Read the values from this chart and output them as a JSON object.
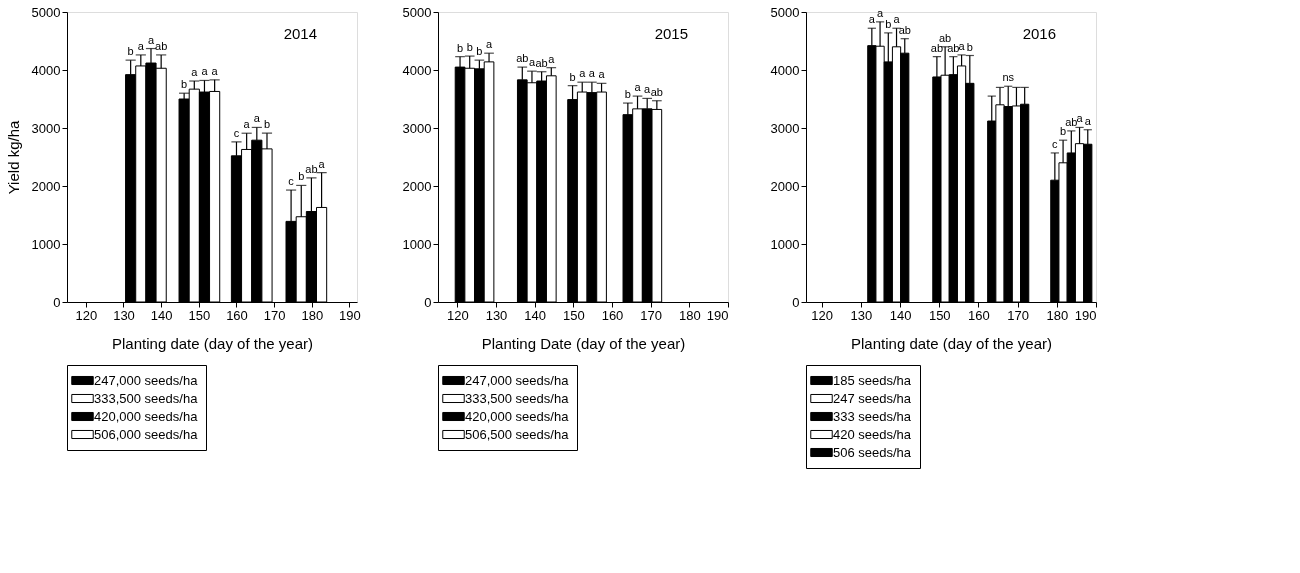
{
  "chart_data": [
    {
      "type": "bar",
      "title": "2014",
      "ylabel": "Yield kg/ha",
      "xlabel": "Planting date (day of the year)",
      "xlim": [
        115,
        192
      ],
      "xticks": [
        120,
        130,
        140,
        150,
        160,
        170,
        180,
        190
      ],
      "ylim": [
        0,
        5000
      ],
      "yticks": [
        0,
        1000,
        2000,
        3000,
        4000,
        5000
      ],
      "grid": false,
      "legend": "bottom",
      "series": [
        {
          "name": "247,000 seeds/ha",
          "color": "#000000",
          "x": [
            131.9,
            146.1,
            160.0,
            174.5
          ],
          "values": [
            3920,
            3500,
            2520,
            1390
          ],
          "errors": [
            250,
            100,
            240,
            540
          ]
        },
        {
          "name": "333,500 seeds/ha",
          "color": "#ffffff",
          "x": [
            134.6,
            148.8,
            162.7,
            177.2
          ],
          "values": [
            4070,
            3670,
            2630,
            1470
          ],
          "errors": [
            190,
            140,
            280,
            540
          ]
        },
        {
          "name": "420,000 seeds/ha",
          "color": "#000000",
          "x": [
            137.3,
            151.5,
            165.4,
            179.9
          ],
          "values": [
            4120,
            3620,
            2790,
            1560
          ],
          "errors": [
            250,
            200,
            220,
            580
          ]
        },
        {
          "name": "506,000 seeds/ha",
          "color": "#ffffff",
          "x": [
            140.0,
            154.2,
            168.1,
            182.6
          ],
          "values": [
            4030,
            3630,
            2640,
            1630
          ],
          "errors": [
            230,
            200,
            270,
            600
          ]
        }
      ],
      "annotations": [
        {
          "text": "b",
          "x": 131.9,
          "y": 4170
        },
        {
          "text": "a",
          "x": 134.6,
          "y": 4260
        },
        {
          "text": "a",
          "x": 137.3,
          "y": 4370
        },
        {
          "text": "ab",
          "x": 140.0,
          "y": 4260
        },
        {
          "text": "b",
          "x": 146.1,
          "y": 3600
        },
        {
          "text": "a",
          "x": 148.8,
          "y": 3810
        },
        {
          "text": "a",
          "x": 151.5,
          "y": 3820
        },
        {
          "text": "a",
          "x": 154.2,
          "y": 3830
        },
        {
          "text": "c",
          "x": 160.0,
          "y": 2760
        },
        {
          "text": "a",
          "x": 162.7,
          "y": 2910
        },
        {
          "text": "a",
          "x": 165.4,
          "y": 3010
        },
        {
          "text": "b",
          "x": 168.1,
          "y": 2910
        },
        {
          "text": "c",
          "x": 174.5,
          "y": 1930
        },
        {
          "text": "b",
          "x": 177.2,
          "y": 2010
        },
        {
          "text": "ab",
          "x": 179.9,
          "y": 2140
        },
        {
          "text": "a",
          "x": 182.6,
          "y": 2230
        }
      ]
    },
    {
      "type": "bar",
      "title": "2015",
      "xlabel": "Planting Date (day of the year)",
      "xlim": [
        115,
        190
      ],
      "xticks": [
        120,
        130,
        140,
        150,
        160,
        170,
        180,
        190
      ],
      "ylim": [
        0,
        5000
      ],
      "yticks": [
        0,
        1000,
        2000,
        3000,
        4000,
        5000
      ],
      "grid": false,
      "legend": "bottom",
      "series": [
        {
          "name": "247,000 seeds/ha",
          "color": "#000000",
          "x": [
            120.7,
            136.8,
            149.8,
            164.1
          ],
          "values": [
            4050,
            3830,
            3490,
            3230
          ],
          "errors": [
            180,
            220,
            240,
            200
          ]
        },
        {
          "name": "333,500 seeds/ha",
          "color": "#ffffff",
          "x": [
            123.2,
            139.3,
            152.3,
            166.6
          ],
          "values": [
            4030,
            3780,
            3620,
            3330
          ],
          "errors": [
            210,
            200,
            170,
            220
          ]
        },
        {
          "name": "420,000 seeds/ha",
          "color": "#000000",
          "x": [
            125.7,
            141.8,
            154.8,
            169.1
          ],
          "values": [
            4020,
            3810,
            3610,
            3330
          ],
          "errors": [
            150,
            160,
            180,
            180
          ]
        },
        {
          "name": "506,500 seeds/ha",
          "color": "#ffffff",
          "x": [
            128.2,
            144.3,
            157.3,
            171.6
          ],
          "values": [
            4140,
            3900,
            3620,
            3320
          ],
          "errors": [
            150,
            140,
            150,
            150
          ]
        }
      ],
      "annotations": [
        {
          "text": "b",
          "x": 120.7,
          "y": 4230
        },
        {
          "text": "b",
          "x": 123.2,
          "y": 4240
        },
        {
          "text": "b",
          "x": 125.7,
          "y": 4170
        },
        {
          "text": "a",
          "x": 128.2,
          "y": 4290
        },
        {
          "text": "ab",
          "x": 136.8,
          "y": 4050
        },
        {
          "text": "a",
          "x": 139.3,
          "y": 3980
        },
        {
          "text": "ab",
          "x": 141.8,
          "y": 3970
        },
        {
          "text": "a",
          "x": 144.3,
          "y": 4040
        },
        {
          "text": "b",
          "x": 149.8,
          "y": 3730
        },
        {
          "text": "a",
          "x": 152.3,
          "y": 3790
        },
        {
          "text": "a",
          "x": 154.8,
          "y": 3790
        },
        {
          "text": "a",
          "x": 157.3,
          "y": 3770
        },
        {
          "text": "b",
          "x": 164.1,
          "y": 3430
        },
        {
          "text": "a",
          "x": 166.6,
          "y": 3550
        },
        {
          "text": "a",
          "x": 169.1,
          "y": 3510
        },
        {
          "text": "ab",
          "x": 171.6,
          "y": 3470
        }
      ]
    },
    {
      "type": "bar",
      "title": "2016",
      "xlabel": "Planting date (day of the year)",
      "xlim": [
        116,
        190
      ],
      "xticks": [
        120,
        130,
        140,
        150,
        160,
        170,
        180,
        190
      ],
      "ylim": [
        0,
        5000
      ],
      "yticks": [
        0,
        1000,
        2000,
        3000,
        4000,
        5000
      ],
      "grid": false,
      "legend": "bottom",
      "series": [
        {
          "name": "185 seeds/ha",
          "color": "#000000",
          "x": [
            132.8,
            149.4,
            163.4,
            179.5
          ],
          "values": [
            4420,
            3880,
            3120,
            2100
          ],
          "errors": [
            300,
            350,
            430,
            470
          ]
        },
        {
          "name": "247 seeds/ha",
          "color": "#ffffff",
          "x": [
            134.9,
            151.5,
            165.5,
            181.6
          ],
          "values": [
            4410,
            3910,
            3400,
            2400
          ],
          "errors": [
            420,
            490,
            300,
            390
          ]
        },
        {
          "name": "333 seeds/ha",
          "color": "#000000",
          "x": [
            137.0,
            153.6,
            167.6,
            183.7
          ],
          "values": [
            4140,
            3920,
            3370,
            2570
          ],
          "errors": [
            500,
            310,
            350,
            380
          ]
        },
        {
          "name": "420 seeds/ha",
          "color": "#ffffff",
          "x": [
            139.1,
            155.7,
            169.7,
            185.8
          ],
          "values": [
            4400,
            4070,
            3380,
            2730
          ],
          "errors": [
            320,
            190,
            320,
            280
          ]
        },
        {
          "name": "506 seeds/ha",
          "color": "#000000",
          "x": [
            141.2,
            157.8,
            171.8,
            187.9
          ],
          "values": [
            4290,
            3770,
            3410,
            2720
          ],
          "errors": [
            250,
            480,
            290,
            250
          ]
        }
      ],
      "annotations": [
        {
          "text": "a",
          "x": 132.8,
          "y": 4720
        },
        {
          "text": "a",
          "x": 134.9,
          "y": 4830
        },
        {
          "text": "b",
          "x": 137.0,
          "y": 4640
        },
        {
          "text": "a",
          "x": 139.1,
          "y": 4720
        },
        {
          "text": "ab",
          "x": 141.2,
          "y": 4540
        },
        {
          "text": "ab",
          "x": 149.4,
          "y": 4230
        },
        {
          "text": "ab",
          "x": 151.5,
          "y": 4400
        },
        {
          "text": "ab",
          "x": 153.6,
          "y": 4230
        },
        {
          "text": "a",
          "x": 155.7,
          "y": 4260
        },
        {
          "text": "b",
          "x": 157.8,
          "y": 4250
        },
        {
          "text": "ns",
          "x": 167.6,
          "y": 3720
        },
        {
          "text": "c",
          "x": 179.5,
          "y": 2570
        },
        {
          "text": "b",
          "x": 181.6,
          "y": 2790
        },
        {
          "text": "ab",
          "x": 183.7,
          "y": 2950
        },
        {
          "text": "a",
          "x": 185.8,
          "y": 3010
        },
        {
          "text": "a",
          "x": 187.9,
          "y": 2970
        }
      ]
    }
  ]
}
